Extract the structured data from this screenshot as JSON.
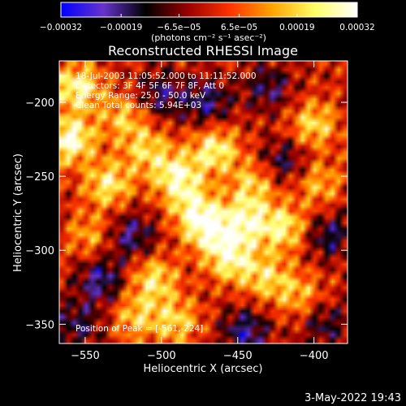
{
  "chart_data": {
    "type": "heatmap",
    "title": "Reconstructed RHESSI Image",
    "xlabel": "Heliocentric X (arcsec)",
    "ylabel": "Heliocentric Y (arcsec)",
    "xlim": [
      -567,
      -378
    ],
    "ylim": [
      -363,
      -172
    ],
    "x_ticks": [
      -550,
      -500,
      -450,
      -400
    ],
    "x_tick_labels": [
      "−550",
      "−500",
      "−450",
      "−400"
    ],
    "y_ticks": [
      -350,
      -300,
      -250,
      -200
    ],
    "y_tick_labels": [
      "−350",
      "−300",
      "−250",
      "−200"
    ],
    "colorbar": {
      "range": [
        -0.00032,
        0.00032
      ],
      "tick_values": [
        -0.00032,
        -0.00019,
        -6.5e-05,
        6.5e-05,
        0.00019,
        0.00032
      ],
      "tick_labels": [
        "−0.00032",
        "−0.00019",
        "−6.5e−05",
        "6.5e−05",
        "0.00019",
        "0.00032"
      ],
      "unit_label": "(photons cm⁻² s⁻¹ asec⁻²)",
      "colors": [
        "#0000ff",
        "#6633cc",
        "#000000",
        "#9a0000",
        "#ff3300",
        "#ffa500",
        "#ffff66",
        "#ffffff"
      ]
    },
    "annotations": [
      "18-Jul-2003 11:05:52.000 to 11:11:52.000",
      "Detectors: 3F 4F 5F 6F 7F 8F, Att 0",
      "Energy Range: 25.0 - 50.0 keV",
      "Clean    Total counts: 5.94E+03"
    ],
    "peak_label": "Position of Peak = [-561,-224]",
    "peak": [
      -561,
      -224
    ],
    "hotspots": [
      {
        "x": -560,
        "y": -225,
        "v": 1.0
      },
      {
        "x": -555,
        "y": -190,
        "v": 0.85
      },
      {
        "x": -535,
        "y": -255,
        "v": 0.75
      },
      {
        "x": -490,
        "y": -250,
        "v": 0.85
      },
      {
        "x": -465,
        "y": -232,
        "v": 0.8
      },
      {
        "x": -470,
        "y": -285,
        "v": 0.9
      },
      {
        "x": -445,
        "y": -280,
        "v": 0.8
      },
      {
        "x": -455,
        "y": -305,
        "v": 0.85
      },
      {
        "x": -420,
        "y": -285,
        "v": 0.75
      },
      {
        "x": -432,
        "y": -318,
        "v": 0.6
      },
      {
        "x": -505,
        "y": -320,
        "v": 0.7
      },
      {
        "x": -517,
        "y": -345,
        "v": 0.55
      },
      {
        "x": -490,
        "y": -348,
        "v": 0.6
      },
      {
        "x": -400,
        "y": -215,
        "v": 0.65
      },
      {
        "x": -397,
        "y": -255,
        "v": 0.5
      },
      {
        "x": -410,
        "y": -330,
        "v": 0.5
      },
      {
        "x": -525,
        "y": -210,
        "v": 0.55
      },
      {
        "x": -510,
        "y": -232,
        "v": 0.6
      },
      {
        "x": -547,
        "y": -290,
        "v": 0.45
      },
      {
        "x": -440,
        "y": -255,
        "v": 0.6
      },
      {
        "x": -480,
        "y": -270,
        "v": 0.6
      }
    ],
    "coldspots": [
      {
        "x": -520,
        "y": -290,
        "v": -0.6
      },
      {
        "x": -540,
        "y": -320,
        "v": -0.65
      },
      {
        "x": -500,
        "y": -195,
        "v": -0.55
      },
      {
        "x": -470,
        "y": -200,
        "v": -0.6
      },
      {
        "x": -390,
        "y": -290,
        "v": -0.55
      },
      {
        "x": -420,
        "y": -240,
        "v": -0.5
      },
      {
        "x": -445,
        "y": -355,
        "v": -0.65
      },
      {
        "x": -393,
        "y": -350,
        "v": -0.45
      },
      {
        "x": -555,
        "y": -350,
        "v": -0.5
      },
      {
        "x": -430,
        "y": -190,
        "v": -0.5
      }
    ]
  },
  "footer_date": "3-May-2022 19:43"
}
